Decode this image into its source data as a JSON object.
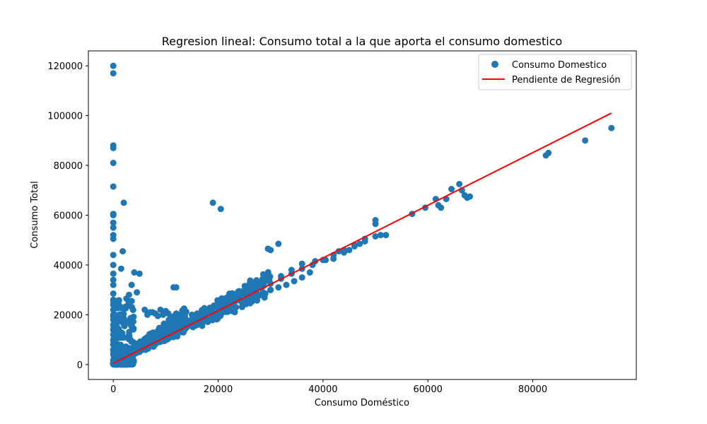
{
  "chart_data": {
    "type": "scatter",
    "title": "Regresion lineal: Consumo total a la que aporta el consumo domestico",
    "xlabel": "Consumo Doméstico",
    "ylabel": "Consumo Total",
    "xlim": [
      -4750,
      99750
    ],
    "ylim": [
      -6000,
      126000
    ],
    "xticks": [
      0,
      20000,
      40000,
      60000,
      80000
    ],
    "yticks": [
      0,
      20000,
      40000,
      60000,
      80000,
      100000,
      120000
    ],
    "xtick_labels": [
      "0",
      "20000",
      "40000",
      "60000",
      "80000"
    ],
    "ytick_labels": [
      "0",
      "20000",
      "40000",
      "60000",
      "80000",
      "100000",
      "120000"
    ],
    "grid": false,
    "legend_position": "top-right",
    "series": [
      {
        "name": "Consumo Domestico",
        "kind": "scatter",
        "color": "#1f77b4",
        "x": [
          0,
          0,
          0,
          0,
          0,
          0,
          0,
          0,
          0,
          0,
          0,
          0,
          0,
          0,
          0,
          0,
          0,
          0,
          0,
          0,
          0,
          0,
          0,
          0,
          0,
          0,
          0,
          0,
          0,
          0,
          2000,
          1800,
          5000,
          4000,
          3000,
          1500,
          2500,
          3500,
          4500,
          6000,
          7500,
          8000,
          9500,
          10000,
          11000,
          12000,
          13500,
          15000,
          16000,
          17500,
          19000,
          20500,
          11500,
          12000,
          7000,
          6500,
          8500,
          9000,
          10500,
          3500,
          1000,
          2000,
          3000,
          4000,
          5000,
          6000,
          7000,
          8000,
          9000,
          10000,
          12000,
          14000,
          16000,
          18000,
          20000,
          22000,
          24000,
          26000,
          28000,
          30000,
          32000,
          34000,
          36000,
          38000,
          40000,
          42000,
          44000,
          46000,
          48000,
          50000,
          27500,
          29000,
          30000,
          31500,
          33000,
          34500,
          36000,
          37500,
          24000,
          25000,
          29500,
          30000,
          31500,
          32000,
          34000,
          36000,
          38500,
          40500,
          42000,
          43000,
          44000,
          45000,
          46000,
          47000,
          48000,
          50000,
          50000,
          51000,
          52000,
          57000,
          59500,
          61500,
          62000,
          62500,
          63500,
          64500,
          66000,
          66500,
          67000,
          67500,
          68000,
          82500,
          83000,
          90000,
          95000
        ],
        "y": [
          120000,
          117000,
          88000,
          87000,
          81000,
          71500,
          60500,
          60000,
          57000,
          55000,
          52000,
          50500,
          44000,
          40000,
          36500,
          34000,
          32000,
          28500,
          26000,
          24000,
          22000,
          20000,
          18000,
          16000,
          14000,
          12000,
          10000,
          8000,
          6000,
          4000,
          65000,
          45500,
          36500,
          37000,
          28000,
          38500,
          26500,
          25500,
          29000,
          22000,
          21000,
          20500,
          20000,
          21500,
          19000,
          20500,
          22500,
          20000,
          20500,
          19000,
          65000,
          62500,
          31000,
          31000,
          21000,
          20000,
          19500,
          22000,
          20500,
          32000,
          1500,
          3000,
          4500,
          5500,
          7000,
          8000,
          9500,
          10500,
          12000,
          13000,
          15000,
          17000,
          19000,
          21000,
          23000,
          25000,
          27000,
          29000,
          31000,
          32500,
          34500,
          36500,
          38500,
          40000,
          42000,
          44000,
          46000,
          48000,
          49500,
          51500,
          27000,
          28500,
          30000,
          31000,
          32000,
          33500,
          35000,
          37000,
          29500,
          28500,
          46500,
          46000,
          48500,
          35500,
          38000,
          40500,
          41500,
          42000,
          42500,
          45500,
          45000,
          46000,
          47500,
          48500,
          50500,
          58000,
          56500,
          52000,
          52000,
          60500,
          63000,
          66500,
          64000,
          63000,
          66500,
          70500,
          72500,
          70000,
          68000,
          67000,
          67500,
          84000,
          85000,
          90000,
          95000
        ]
      },
      {
        "name": "Pendiente de Regresión",
        "kind": "line",
        "color": "#ff0000",
        "x": [
          0,
          95000
        ],
        "y": [
          500,
          101000
        ]
      }
    ],
    "cloud_bands": [
      {
        "x0": 0,
        "x1": 30000,
        "slope_low": 0.9,
        "slope_high": 1.25,
        "count": 500
      },
      {
        "x0": 0,
        "x1": 4000,
        "y0": 0,
        "y1": 26000,
        "count": 220
      },
      {
        "x0": 4000,
        "x1": 14000,
        "slope_low": 1.0,
        "slope_high": 1.6,
        "count": 220
      }
    ]
  }
}
